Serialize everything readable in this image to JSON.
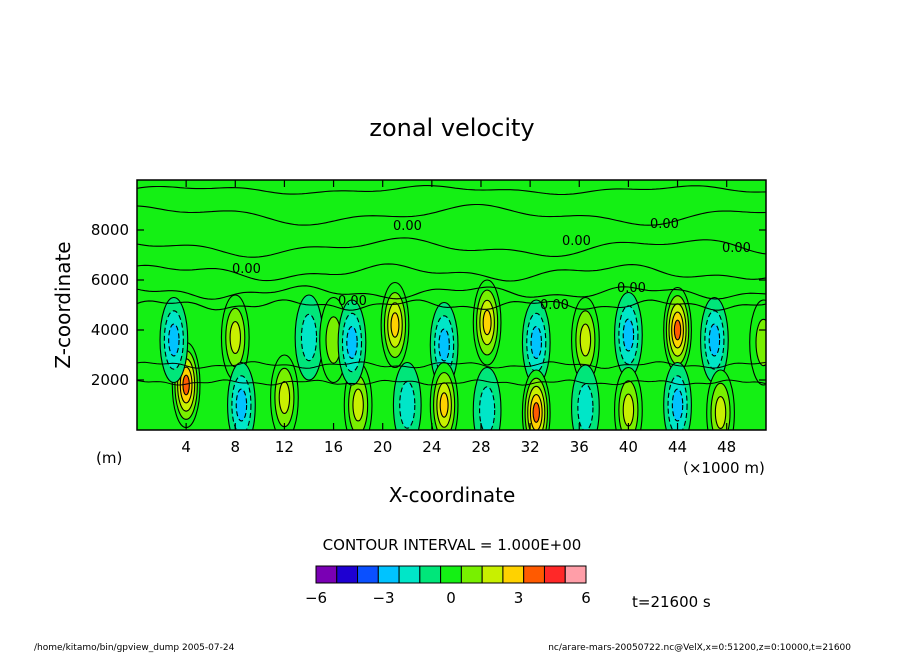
{
  "chart_data": {
    "type": "heatmap",
    "title": "zonal velocity",
    "xlabel": "X-coordinate",
    "ylabel": "Z-coordinate",
    "x_unit_left": "(m)",
    "x_multiplier": "(×1000 m)",
    "x_ticks": [
      4,
      8,
      12,
      16,
      20,
      24,
      28,
      32,
      36,
      40,
      44,
      48
    ],
    "y_ticks": [
      2000,
      4000,
      6000,
      8000
    ],
    "xlim": [
      0,
      51.2
    ],
    "ylim": [
      0,
      10000
    ],
    "zero_contour_labels": [
      "0.00",
      "0.00",
      "0.00",
      "0.00",
      "0.00",
      "0.00",
      "0.00",
      "0.00"
    ],
    "contour_interval_text": "CONTOUR INTERVAL = 1.000E+00",
    "colorbar": {
      "levels": [
        -6,
        -5,
        -4,
        -3,
        -2,
        -1,
        0,
        1,
        2,
        3,
        4,
        5,
        6
      ],
      "tick_labels": [
        "−6",
        "−3",
        "0",
        "3",
        "6"
      ],
      "tick_values": [
        -6,
        -3,
        0,
        3,
        6
      ],
      "colors": [
        "#7a00b4",
        "#1e00d2",
        "#0a50ff",
        "#00c3ff",
        "#00e6c8",
        "#00e67a",
        "#14f014",
        "#78f000",
        "#c8f000",
        "#ffd200",
        "#ff5a00",
        "#ff2828",
        "#ff9ea8"
      ]
    },
    "field_regions": [
      {
        "x": 4.0,
        "z": 1800,
        "peak": 4.2
      },
      {
        "x": 8.0,
        "z": 3700,
        "peak": 2.8
      },
      {
        "x": 3.0,
        "z": 3600,
        "peak": -2.5
      },
      {
        "x": 12.0,
        "z": 1300,
        "peak": 2.0
      },
      {
        "x": 8.5,
        "z": 1000,
        "peak": -2.0
      },
      {
        "x": 14.0,
        "z": 3700,
        "peak": -1.5
      },
      {
        "x": 16.0,
        "z": 3600,
        "peak": 1.2
      },
      {
        "x": 18.0,
        "z": 1000,
        "peak": 2.5
      },
      {
        "x": 17.5,
        "z": 3500,
        "peak": -2.3
      },
      {
        "x": 21.0,
        "z": 4200,
        "peak": 3.0
      },
      {
        "x": 22.0,
        "z": 1000,
        "peak": -1.2
      },
      {
        "x": 25.0,
        "z": 3400,
        "peak": -2.5
      },
      {
        "x": 25.0,
        "z": 1000,
        "peak": 3.5
      },
      {
        "x": 28.5,
        "z": 4300,
        "peak": 3.8
      },
      {
        "x": 28.5,
        "z": 800,
        "peak": -1.2
      },
      {
        "x": 32.5,
        "z": 3500,
        "peak": -2.3
      },
      {
        "x": 32.5,
        "z": 700,
        "peak": 4.0
      },
      {
        "x": 36.5,
        "z": 3600,
        "peak": 2.0
      },
      {
        "x": 36.5,
        "z": 900,
        "peak": -1.5
      },
      {
        "x": 40.0,
        "z": 3800,
        "peak": -2.5
      },
      {
        "x": 40.0,
        "z": 800,
        "peak": 2.5
      },
      {
        "x": 44.0,
        "z": 4000,
        "peak": 4.0
      },
      {
        "x": 44.0,
        "z": 1000,
        "peak": -2.0
      },
      {
        "x": 47.0,
        "z": 3600,
        "peak": -2.2
      },
      {
        "x": 47.5,
        "z": 700,
        "peak": 2.0
      },
      {
        "x": 51.0,
        "z": 3500,
        "peak": 1.8
      }
    ]
  },
  "annotations": {
    "time": "t=21600 s",
    "footer_left": "/home/kitamo/bin/gpview_dump  2005-07-24",
    "footer_right": "nc/arare-mars-20050722.nc@VelX,x=0:51200,z=0:10000,t=21600"
  }
}
